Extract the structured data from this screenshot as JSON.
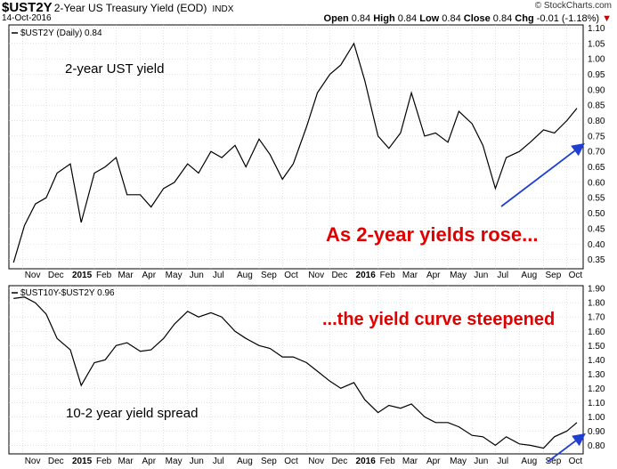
{
  "header": {
    "symbol": "$UST2Y",
    "description": "2-Year US Treasury Yield (EOD)",
    "exchange": "INDX",
    "date": "14-Oct-2016",
    "brand": "© StockCharts.com",
    "open_label": "Open",
    "open": "0.84",
    "high_label": "High",
    "high": "0.84",
    "low_label": "Low",
    "low": "0.84",
    "close_label": "Close",
    "close": "0.84",
    "chg_label": "Chg",
    "chg": "-0.01 (-1.18%)",
    "chg_arrow": "▼"
  },
  "colors": {
    "price_line": "#000000",
    "annotation_red": "#e00000",
    "arrow_blue": "#1f3fd4",
    "grid": "#cfcfcf"
  },
  "chart_data": [
    {
      "type": "line",
      "legend": "$UST2Y (Daily) 0.84",
      "annotation_label": "2-year UST yield",
      "annotation_red": "As 2-year yields rose...",
      "x_tick_labels": [
        "Nov",
        "Dec",
        "2015",
        "Feb",
        "Mar",
        "Apr",
        "May",
        "Jun",
        "Jul",
        "Aug",
        "Sep",
        "Oct",
        "Nov",
        "Dec",
        "2016",
        "Feb",
        "Mar",
        "Apr",
        "May",
        "Jun",
        "Jul",
        "Aug",
        "Sep",
        "Oct"
      ],
      "ylim": [
        0.32,
        1.11
      ],
      "y_ticks": [
        0.35,
        0.4,
        0.45,
        0.5,
        0.55,
        0.6,
        0.65,
        0.7,
        0.75,
        0.8,
        0.85,
        0.9,
        0.95,
        1.0,
        1.05,
        1.1
      ],
      "x": [
        "2014-10-20",
        "2014-11-03",
        "2014-11-17",
        "2014-12-01",
        "2014-12-15",
        "2015-01-01",
        "2015-01-15",
        "2015-02-01",
        "2015-02-15",
        "2015-03-01",
        "2015-03-15",
        "2015-04-01",
        "2015-04-15",
        "2015-05-01",
        "2015-05-15",
        "2015-06-01",
        "2015-06-15",
        "2015-07-01",
        "2015-07-15",
        "2015-08-01",
        "2015-08-15",
        "2015-09-01",
        "2015-09-15",
        "2015-10-01",
        "2015-10-15",
        "2015-11-01",
        "2015-11-15",
        "2015-12-01",
        "2015-12-15",
        "2016-01-01",
        "2016-01-15",
        "2016-02-01",
        "2016-02-15",
        "2016-03-01",
        "2016-03-15",
        "2016-04-01",
        "2016-04-15",
        "2016-05-01",
        "2016-05-15",
        "2016-06-01",
        "2016-06-15",
        "2016-07-01",
        "2016-07-15",
        "2016-08-01",
        "2016-08-15",
        "2016-09-01",
        "2016-09-15",
        "2016-10-01",
        "2016-10-14"
      ],
      "values": [
        0.34,
        0.46,
        0.53,
        0.55,
        0.63,
        0.66,
        0.47,
        0.63,
        0.65,
        0.68,
        0.56,
        0.56,
        0.52,
        0.58,
        0.6,
        0.66,
        0.63,
        0.7,
        0.68,
        0.72,
        0.65,
        0.74,
        0.69,
        0.61,
        0.66,
        0.78,
        0.89,
        0.95,
        0.98,
        1.05,
        0.93,
        0.75,
        0.71,
        0.76,
        0.89,
        0.75,
        0.76,
        0.73,
        0.83,
        0.79,
        0.72,
        0.58,
        0.68,
        0.7,
        0.73,
        0.77,
        0.76,
        0.8,
        0.84
      ]
    },
    {
      "type": "line",
      "legend": "$UST10Y-$UST2Y 0.96",
      "annotation_label": "10-2 year yield spread",
      "annotation_red": "...the yield curve steepened",
      "x_tick_labels": [
        "Nov",
        "Dec",
        "2015",
        "Feb",
        "Mar",
        "Apr",
        "May",
        "Jun",
        "Jul",
        "Aug",
        "Sep",
        "Oct",
        "Nov",
        "Dec",
        "2016",
        "Feb",
        "Mar",
        "Apr",
        "May",
        "Jun",
        "Jul",
        "Aug",
        "Sep",
        "Oct"
      ],
      "ylim": [
        0.74,
        1.92
      ],
      "y_ticks": [
        0.8,
        0.9,
        1.0,
        1.1,
        1.2,
        1.3,
        1.4,
        1.5,
        1.6,
        1.7,
        1.8,
        1.9
      ],
      "x": [
        "2014-10-20",
        "2014-11-03",
        "2014-11-17",
        "2014-12-01",
        "2014-12-15",
        "2015-01-01",
        "2015-01-15",
        "2015-02-01",
        "2015-02-15",
        "2015-03-01",
        "2015-03-15",
        "2015-04-01",
        "2015-04-15",
        "2015-05-01",
        "2015-05-15",
        "2015-06-01",
        "2015-06-15",
        "2015-07-01",
        "2015-07-15",
        "2015-08-01",
        "2015-08-15",
        "2015-09-01",
        "2015-09-15",
        "2015-10-01",
        "2015-10-15",
        "2015-11-01",
        "2015-11-15",
        "2015-12-01",
        "2015-12-15",
        "2016-01-01",
        "2016-01-15",
        "2016-02-01",
        "2016-02-15",
        "2016-03-01",
        "2016-03-15",
        "2016-04-01",
        "2016-04-15",
        "2016-05-01",
        "2016-05-15",
        "2016-06-01",
        "2016-06-15",
        "2016-07-01",
        "2016-07-15",
        "2016-08-01",
        "2016-08-15",
        "2016-09-01",
        "2016-09-15",
        "2016-10-01",
        "2016-10-14"
      ],
      "values": [
        1.83,
        1.84,
        1.8,
        1.72,
        1.55,
        1.47,
        1.22,
        1.38,
        1.4,
        1.5,
        1.52,
        1.46,
        1.47,
        1.55,
        1.65,
        1.74,
        1.7,
        1.73,
        1.7,
        1.6,
        1.55,
        1.5,
        1.48,
        1.42,
        1.42,
        1.38,
        1.32,
        1.25,
        1.2,
        1.24,
        1.12,
        1.03,
        1.08,
        1.06,
        1.09,
        1.0,
        0.96,
        0.96,
        0.93,
        0.87,
        0.86,
        0.8,
        0.86,
        0.81,
        0.8,
        0.78,
        0.86,
        0.9,
        0.96
      ]
    }
  ]
}
